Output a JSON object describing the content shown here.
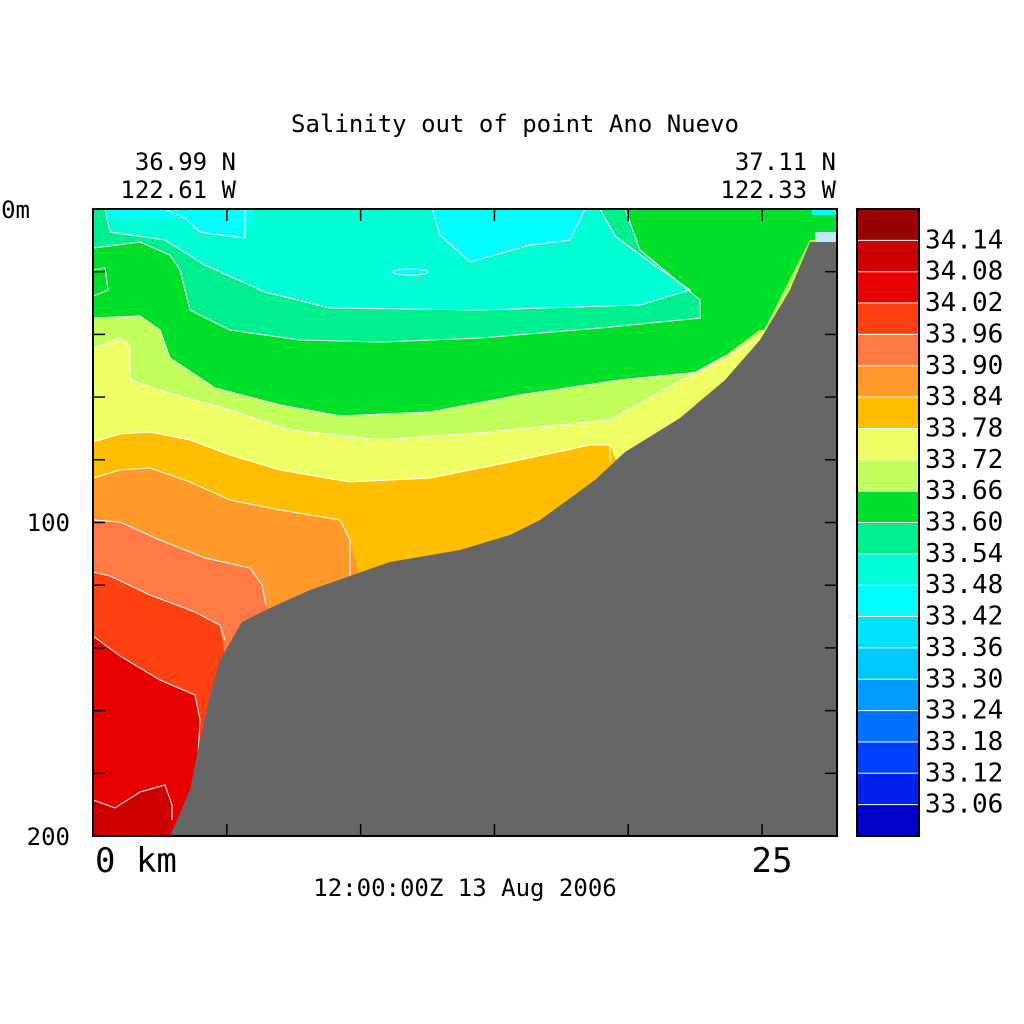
{
  "chart_data": {
    "type": "heatmap",
    "title": "Salinity out of point Ano Nuevo",
    "start_lat": "36.99 N",
    "start_lon": "122.61 W",
    "end_lat": "37.11 N",
    "end_lon": "122.33 W",
    "timestamp": "12:00:00Z  13 Aug 2006",
    "y_axis": {
      "min": 0,
      "max": 200,
      "inverted": true,
      "labels": [
        "0m",
        "100",
        "200"
      ],
      "tick_step": 20
    },
    "x_axis": {
      "min": 0,
      "max": 27.8,
      "labels": [
        "0 km",
        "25"
      ],
      "tick_step": 5
    },
    "colorbar_labels": [
      "34.14",
      "34.08",
      "34.02",
      "33.96",
      "33.90",
      "33.84",
      "33.78",
      "33.72",
      "33.66",
      "33.60",
      "33.54",
      "33.48",
      "33.42",
      "33.36",
      "33.30",
      "33.24",
      "33.18",
      "33.12",
      "33.06"
    ],
    "colorbar_colors": [
      "#990000",
      "#cc0000",
      "#e60000",
      "#ff4010",
      "#ff7a44",
      "#ff9a2a",
      "#ffbf00",
      "#eeff66",
      "#c2ff5c",
      "#00e02a",
      "#00f090",
      "#00ffd5",
      "#00ffff",
      "#00e3ff",
      "#00c8ff",
      "#009cff",
      "#0070ff",
      "#0040ff",
      "#0020ee",
      "#0000c8"
    ],
    "land_color": "#666666"
  }
}
